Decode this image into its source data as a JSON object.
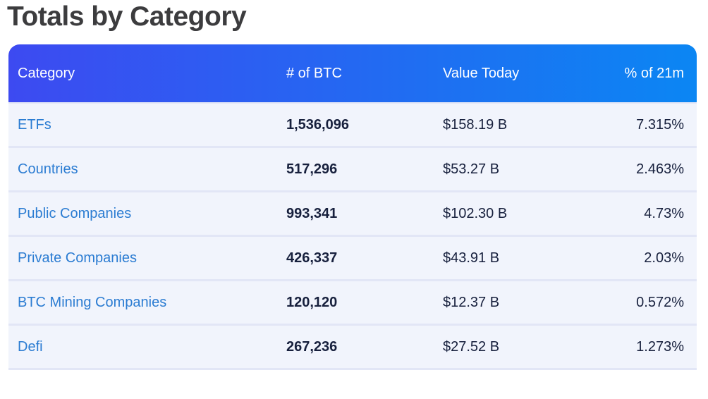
{
  "page": {
    "title": "Totals by Category"
  },
  "table": {
    "columns": [
      {
        "label": "Category"
      },
      {
        "label": "# of BTC"
      },
      {
        "label": "Value Today"
      },
      {
        "label": "% of 21m"
      }
    ],
    "rows": [
      {
        "category": "ETFs",
        "btc": "1,536,096",
        "value": "$158.19 B",
        "pct": "7.315%"
      },
      {
        "category": "Countries",
        "btc": "517,296",
        "value": "$53.27 B",
        "pct": "2.463%"
      },
      {
        "category": "Public Companies",
        "btc": "993,341",
        "value": "$102.30 B",
        "pct": "4.73%"
      },
      {
        "category": "Private Companies",
        "btc": "426,337",
        "value": "$43.91 B",
        "pct": "2.03%"
      },
      {
        "category": "BTC Mining Companies",
        "btc": "120,120",
        "value": "$12.37 B",
        "pct": "0.572%"
      },
      {
        "category": "Defi",
        "btc": "267,236",
        "value": "$27.52 B",
        "pct": "1.273%"
      }
    ]
  },
  "colors": {
    "title": "#3c3c3e",
    "header_gradient_start": "#3d4af1",
    "header_gradient_end": "#0b86f3",
    "header_text": "#ffffff",
    "row_bg": "#f1f4fc",
    "divider": "#e2e6f6",
    "category_link": "#2b7cd2",
    "cell_text": "#17203d"
  }
}
